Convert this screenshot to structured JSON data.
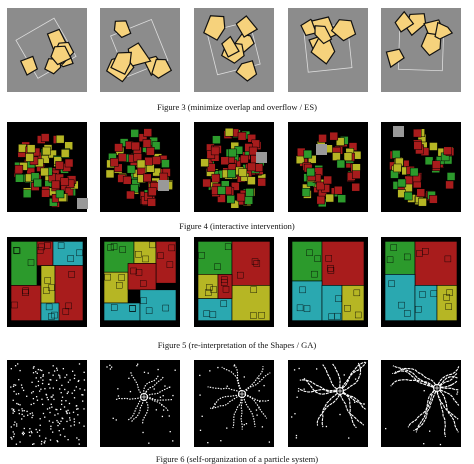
{
  "figures": [
    {
      "caption": "Figure 3  (minimize overlap and overflow / ES)"
    },
    {
      "caption": "Figure 4  (interactive intervention)"
    },
    {
      "caption": "Figure 5  (re-interpretation of the Shapes / GA)"
    },
    {
      "caption": "Figure 6  (self-organization of a particle system)"
    }
  ]
}
